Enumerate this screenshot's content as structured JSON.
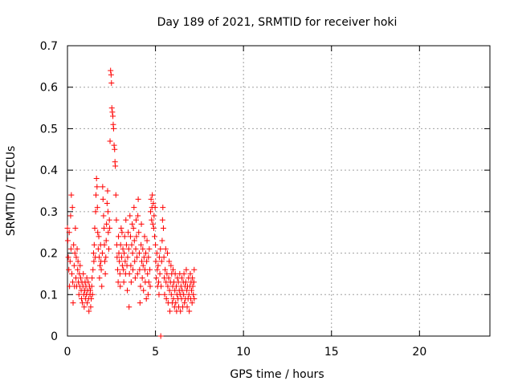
{
  "chart_data": {
    "type": "scatter",
    "title": "Day 189 of 2021, SRMTID for receiver hoki",
    "xlabel": "GPS time / hours",
    "ylabel": "SRMTID / TECUs",
    "xlim": [
      0,
      24
    ],
    "ylim": [
      0,
      0.7
    ],
    "xticks": [
      0,
      5,
      10,
      15,
      20
    ],
    "xtick_labels": [
      "0",
      "5",
      "10",
      "15",
      "20"
    ],
    "yticks": [
      0,
      0.1,
      0.2,
      0.3,
      0.4,
      0.5,
      0.6,
      0.7
    ],
    "ytick_labels": [
      "0",
      "0.1",
      "0.2",
      "0.3",
      "0.4",
      "0.5",
      "0.6",
      "0.7"
    ],
    "grid": true,
    "marker": "+",
    "color": "#ff0000",
    "series": [
      {
        "name": "SRMTID",
        "points": [
          [
            0.0,
            0.26
          ],
          [
            0.02,
            0.23
          ],
          [
            0.05,
            0.19
          ],
          [
            0.08,
            0.16
          ],
          [
            0.1,
            0.25
          ],
          [
            0.12,
            0.12
          ],
          [
            0.15,
            0.18
          ],
          [
            0.18,
            0.29
          ],
          [
            0.2,
            0.21
          ],
          [
            0.22,
            0.34
          ],
          [
            0.25,
            0.15
          ],
          [
            0.28,
            0.31
          ],
          [
            0.3,
            0.13
          ],
          [
            0.32,
            0.08
          ],
          [
            0.35,
            0.22
          ],
          [
            0.38,
            0.17
          ],
          [
            0.4,
            0.12
          ],
          [
            0.42,
            0.2
          ],
          [
            0.45,
            0.26
          ],
          [
            0.48,
            0.14
          ],
          [
            0.5,
            0.19
          ],
          [
            0.52,
            0.12
          ],
          [
            0.55,
            0.21
          ],
          [
            0.58,
            0.16
          ],
          [
            0.6,
            0.18
          ],
          [
            0.62,
            0.13
          ],
          [
            0.65,
            0.1
          ],
          [
            0.68,
            0.15
          ],
          [
            0.7,
            0.12
          ],
          [
            0.72,
            0.17
          ],
          [
            0.75,
            0.14
          ],
          [
            0.78,
            0.11
          ],
          [
            0.8,
            0.09
          ],
          [
            0.82,
            0.13
          ],
          [
            0.85,
            0.08
          ],
          [
            0.88,
            0.12
          ],
          [
            0.9,
            0.15
          ],
          [
            0.92,
            0.1
          ],
          [
            0.95,
            0.07
          ],
          [
            0.98,
            0.11
          ],
          [
            1.0,
            0.13
          ],
          [
            1.02,
            0.09
          ],
          [
            1.05,
            0.12
          ],
          [
            1.08,
            0.1
          ],
          [
            1.1,
            0.14
          ],
          [
            1.12,
            0.08
          ],
          [
            1.15,
            0.11
          ],
          [
            1.18,
            0.13
          ],
          [
            1.2,
            0.09
          ],
          [
            1.22,
            0.06
          ],
          [
            1.25,
            0.12
          ],
          [
            1.28,
            0.1
          ],
          [
            1.3,
            0.11
          ],
          [
            1.32,
            0.07
          ],
          [
            1.35,
            0.09
          ],
          [
            1.38,
            0.12
          ],
          [
            1.4,
            0.14
          ],
          [
            1.42,
            0.1
          ],
          [
            1.45,
            0.16
          ],
          [
            1.48,
            0.2
          ],
          [
            1.5,
            0.18
          ],
          [
            1.52,
            0.22
          ],
          [
            1.55,
            0.26
          ],
          [
            1.58,
            0.19
          ],
          [
            1.6,
            0.3
          ],
          [
            1.62,
            0.34
          ],
          [
            1.65,
            0.38
          ],
          [
            1.68,
            0.36
          ],
          [
            1.7,
            0.31
          ],
          [
            1.72,
            0.25
          ],
          [
            1.75,
            0.21
          ],
          [
            1.78,
            0.24
          ],
          [
            1.8,
            0.19
          ],
          [
            1.82,
            0.14
          ],
          [
            1.85,
            0.17
          ],
          [
            1.88,
            0.22
          ],
          [
            1.9,
            0.18
          ],
          [
            1.92,
            0.16
          ],
          [
            1.95,
            0.12
          ],
          [
            1.98,
            0.2
          ],
          [
            2.0,
            0.36
          ],
          [
            2.02,
            0.33
          ],
          [
            2.05,
            0.29
          ],
          [
            2.08,
            0.26
          ],
          [
            2.1,
            0.22
          ],
          [
            2.12,
            0.18
          ],
          [
            2.15,
            0.15
          ],
          [
            2.18,
            0.19
          ],
          [
            2.2,
            0.23
          ],
          [
            2.22,
            0.27
          ],
          [
            2.25,
            0.32
          ],
          [
            2.28,
            0.35
          ],
          [
            2.3,
            0.3
          ],
          [
            2.32,
            0.25
          ],
          [
            2.35,
            0.21
          ],
          [
            2.38,
            0.28
          ],
          [
            2.4,
            0.26
          ],
          [
            2.42,
            0.47
          ],
          [
            2.45,
            0.64
          ],
          [
            2.48,
            0.63
          ],
          [
            2.5,
            0.61
          ],
          [
            2.52,
            0.55
          ],
          [
            2.55,
            0.54
          ],
          [
            2.58,
            0.53
          ],
          [
            2.6,
            0.51
          ],
          [
            2.62,
            0.5
          ],
          [
            2.65,
            0.46
          ],
          [
            2.68,
            0.45
          ],
          [
            2.7,
            0.42
          ],
          [
            2.72,
            0.41
          ],
          [
            2.75,
            0.34
          ],
          [
            2.78,
            0.28
          ],
          [
            2.8,
            0.22
          ],
          [
            2.82,
            0.19
          ],
          [
            2.85,
            0.16
          ],
          [
            2.88,
            0.13
          ],
          [
            2.9,
            0.24
          ],
          [
            2.92,
            0.2
          ],
          [
            2.95,
            0.18
          ],
          [
            2.98,
            0.15
          ],
          [
            3.0,
            0.12
          ],
          [
            3.02,
            0.22
          ],
          [
            3.05,
            0.26
          ],
          [
            3.08,
            0.19
          ],
          [
            3.1,
            0.25
          ],
          [
            3.12,
            0.17
          ],
          [
            3.15,
            0.21
          ],
          [
            3.18,
            0.16
          ],
          [
            3.2,
            0.13
          ],
          [
            3.22,
            0.2
          ],
          [
            3.25,
            0.24
          ],
          [
            3.28,
            0.18
          ],
          [
            3.3,
            0.15
          ],
          [
            3.32,
            0.28
          ],
          [
            3.35,
            0.22
          ],
          [
            3.38,
            0.17
          ],
          [
            3.4,
            0.11
          ],
          [
            3.42,
            0.19
          ],
          [
            3.45,
            0.25
          ],
          [
            3.48,
            0.21
          ],
          [
            3.5,
            0.07
          ],
          [
            3.52,
            0.15
          ],
          [
            3.55,
            0.29
          ],
          [
            3.58,
            0.24
          ],
          [
            3.6,
            0.17
          ],
          [
            3.62,
            0.13
          ],
          [
            3.65,
            0.22
          ],
          [
            3.68,
            0.27
          ],
          [
            3.7,
            0.2
          ],
          [
            3.72,
            0.16
          ],
          [
            3.75,
            0.26
          ],
          [
            3.78,
            0.31
          ],
          [
            3.8,
            0.23
          ],
          [
            3.82,
            0.18
          ],
          [
            3.85,
            0.14
          ],
          [
            3.88,
            0.21
          ],
          [
            3.9,
            0.28
          ],
          [
            3.92,
            0.24
          ],
          [
            3.95,
            0.19
          ],
          [
            3.98,
            0.15
          ],
          [
            4.0,
            0.29
          ],
          [
            4.02,
            0.33
          ],
          [
            4.05,
            0.25
          ],
          [
            4.08,
            0.2
          ],
          [
            4.1,
            0.16
          ],
          [
            4.12,
            0.08
          ],
          [
            4.15,
            0.12
          ],
          [
            4.18,
            0.22
          ],
          [
            4.2,
            0.27
          ],
          [
            4.22,
            0.18
          ],
          [
            4.25,
            0.14
          ],
          [
            4.28,
            0.21
          ],
          [
            4.3,
            0.17
          ],
          [
            4.32,
            0.11
          ],
          [
            4.35,
            0.19
          ],
          [
            4.38,
            0.24
          ],
          [
            4.4,
            0.16
          ],
          [
            4.42,
            0.13
          ],
          [
            4.45,
            0.2
          ],
          [
            4.48,
            0.09
          ],
          [
            4.5,
            0.18
          ],
          [
            4.52,
            0.23
          ],
          [
            4.55,
            0.15
          ],
          [
            4.58,
            0.1
          ],
          [
            4.6,
            0.19
          ],
          [
            4.62,
            0.13
          ],
          [
            4.65,
            0.21
          ],
          [
            4.68,
            0.16
          ],
          [
            4.7,
            0.12
          ],
          [
            4.72,
            0.3
          ],
          [
            4.75,
            0.33
          ],
          [
            4.78,
            0.28
          ],
          [
            4.8,
            0.31
          ],
          [
            4.82,
            0.34
          ],
          [
            4.85,
            0.27
          ],
          [
            4.88,
            0.32
          ],
          [
            4.9,
            0.26
          ],
          [
            4.92,
            0.29
          ],
          [
            4.95,
            0.24
          ],
          [
            4.98,
            0.31
          ],
          [
            5.0,
            0.22
          ],
          [
            5.02,
            0.18
          ],
          [
            5.05,
            0.14
          ],
          [
            5.08,
            0.2
          ],
          [
            5.1,
            0.16
          ],
          [
            5.12,
            0.12
          ],
          [
            5.15,
            0.17
          ],
          [
            5.18,
            0.13
          ],
          [
            5.2,
            0.1
          ],
          [
            5.22,
            0.19
          ],
          [
            5.25,
            0.15
          ],
          [
            5.28,
            0.21
          ],
          [
            5.3,
            0.0
          ],
          [
            5.32,
            0.12
          ],
          [
            5.35,
            0.18
          ],
          [
            5.38,
            0.23
          ],
          [
            5.4,
            0.28
          ],
          [
            5.42,
            0.31
          ],
          [
            5.45,
            0.26
          ],
          [
            5.48,
            0.19
          ],
          [
            5.5,
            0.14
          ],
          [
            5.52,
            0.1
          ],
          [
            5.55,
            0.16
          ],
          [
            5.58,
            0.21
          ],
          [
            5.6,
            0.13
          ],
          [
            5.62,
            0.09
          ],
          [
            5.65,
            0.15
          ],
          [
            5.68,
            0.2
          ],
          [
            5.7,
            0.12
          ],
          [
            5.72,
            0.08
          ],
          [
            5.75,
            0.14
          ],
          [
            5.78,
            0.18
          ],
          [
            5.8,
            0.11
          ],
          [
            5.82,
            0.06
          ],
          [
            5.85,
            0.13
          ],
          [
            5.88,
            0.17
          ],
          [
            5.9,
            0.1
          ],
          [
            5.92,
            0.15
          ],
          [
            5.95,
            0.08
          ],
          [
            5.98,
            0.12
          ],
          [
            6.0,
            0.16
          ],
          [
            6.02,
            0.09
          ],
          [
            6.05,
            0.13
          ],
          [
            6.08,
            0.07
          ],
          [
            6.1,
            0.11
          ],
          [
            6.12,
            0.15
          ],
          [
            6.15,
            0.08
          ],
          [
            6.18,
            0.12
          ],
          [
            6.2,
            0.06
          ],
          [
            6.22,
            0.1
          ],
          [
            6.25,
            0.14
          ],
          [
            6.28,
            0.09
          ],
          [
            6.3,
            0.13
          ],
          [
            6.32,
            0.07
          ],
          [
            6.35,
            0.11
          ],
          [
            6.38,
            0.15
          ],
          [
            6.4,
            0.1
          ],
          [
            6.42,
            0.06
          ],
          [
            6.45,
            0.12
          ],
          [
            6.48,
            0.09
          ],
          [
            6.5,
            0.14
          ],
          [
            6.52,
            0.11
          ],
          [
            6.55,
            0.07
          ],
          [
            6.58,
            0.13
          ],
          [
            6.6,
            0.1
          ],
          [
            6.62,
            0.15
          ],
          [
            6.65,
            0.08
          ],
          [
            6.68,
            0.12
          ],
          [
            6.7,
            0.09
          ],
          [
            6.72,
            0.13
          ],
          [
            6.75,
            0.16
          ],
          [
            6.78,
            0.11
          ],
          [
            6.8,
            0.07
          ],
          [
            6.82,
            0.12
          ],
          [
            6.85,
            0.09
          ],
          [
            6.88,
            0.14
          ],
          [
            6.9,
            0.1
          ],
          [
            6.92,
            0.06
          ],
          [
            6.95,
            0.12
          ],
          [
            6.98,
            0.15
          ],
          [
            7.0,
            0.09
          ],
          [
            7.02,
            0.13
          ],
          [
            7.05,
            0.11
          ],
          [
            7.08,
            0.08
          ],
          [
            7.1,
            0.14
          ],
          [
            7.12,
            0.12
          ],
          [
            7.15,
            0.1
          ],
          [
            7.18,
            0.13
          ],
          [
            7.2,
            0.09
          ],
          [
            7.2,
            0.16
          ]
        ]
      }
    ]
  }
}
